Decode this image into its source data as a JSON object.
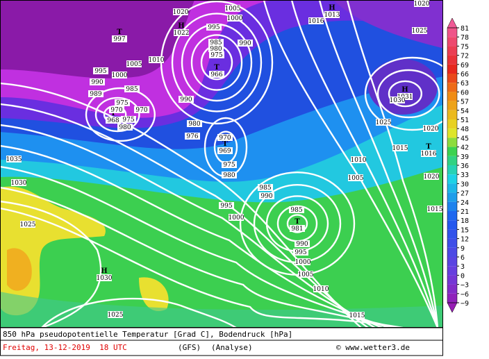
{
  "title": "850 hPa pseudopotentielle Temperatur [Grad C], Bodendruck [hPa]",
  "date": "Freitag, 13-12-2019  18 UTC",
  "model": "(GFS)",
  "run": "(Analyse)",
  "credit": "© www.wetter3.de",
  "colorbar": {
    "ticks": [
      81,
      78,
      75,
      72,
      69,
      66,
      63,
      60,
      57,
      54,
      51,
      48,
      45,
      42,
      39,
      36,
      33,
      30,
      27,
      24,
      21,
      18,
      15,
      12,
      9,
      6,
      3,
      0,
      {
        "value": -3,
        "label": "−3"
      },
      {
        "value": -6,
        "label": "−6"
      },
      {
        "value": -9,
        "label": "−9"
      }
    ]
  },
  "centers": [
    {
      "symbol": "T",
      "pressure": 997
    },
    {
      "symbol": "H",
      "pressure": 1022
    },
    {
      "symbol": "H",
      "pressure": 1013
    },
    {
      "symbol": "T",
      "pressure": 966
    },
    {
      "symbol": "T",
      "pressure": 968
    },
    {
      "symbol": "T",
      "pressure": 969
    },
    {
      "symbol": "T",
      "pressure": 981
    },
    {
      "symbol": "H",
      "pressure": 1030
    },
    {
      "symbol": "H",
      "pressure": 1031
    },
    {
      "symbol": "T",
      "pressure": 1016
    }
  ],
  "isobar_labels": [
    1020,
    1005,
    1000,
    995,
    985,
    980,
    975,
    990,
    1016,
    1020,
    1025,
    995,
    1000,
    1005,
    1010,
    990,
    989,
    985,
    975,
    970,
    970,
    975,
    980,
    990,
    980,
    976,
    970,
    975,
    980,
    985,
    990,
    995,
    1000,
    985,
    990,
    995,
    1000,
    1005,
    1010,
    1015,
    1025,
    1025,
    1030,
    1035,
    1010,
    1005,
    1015,
    1015,
    1020,
    1020,
    1025,
    1030
  ]
}
